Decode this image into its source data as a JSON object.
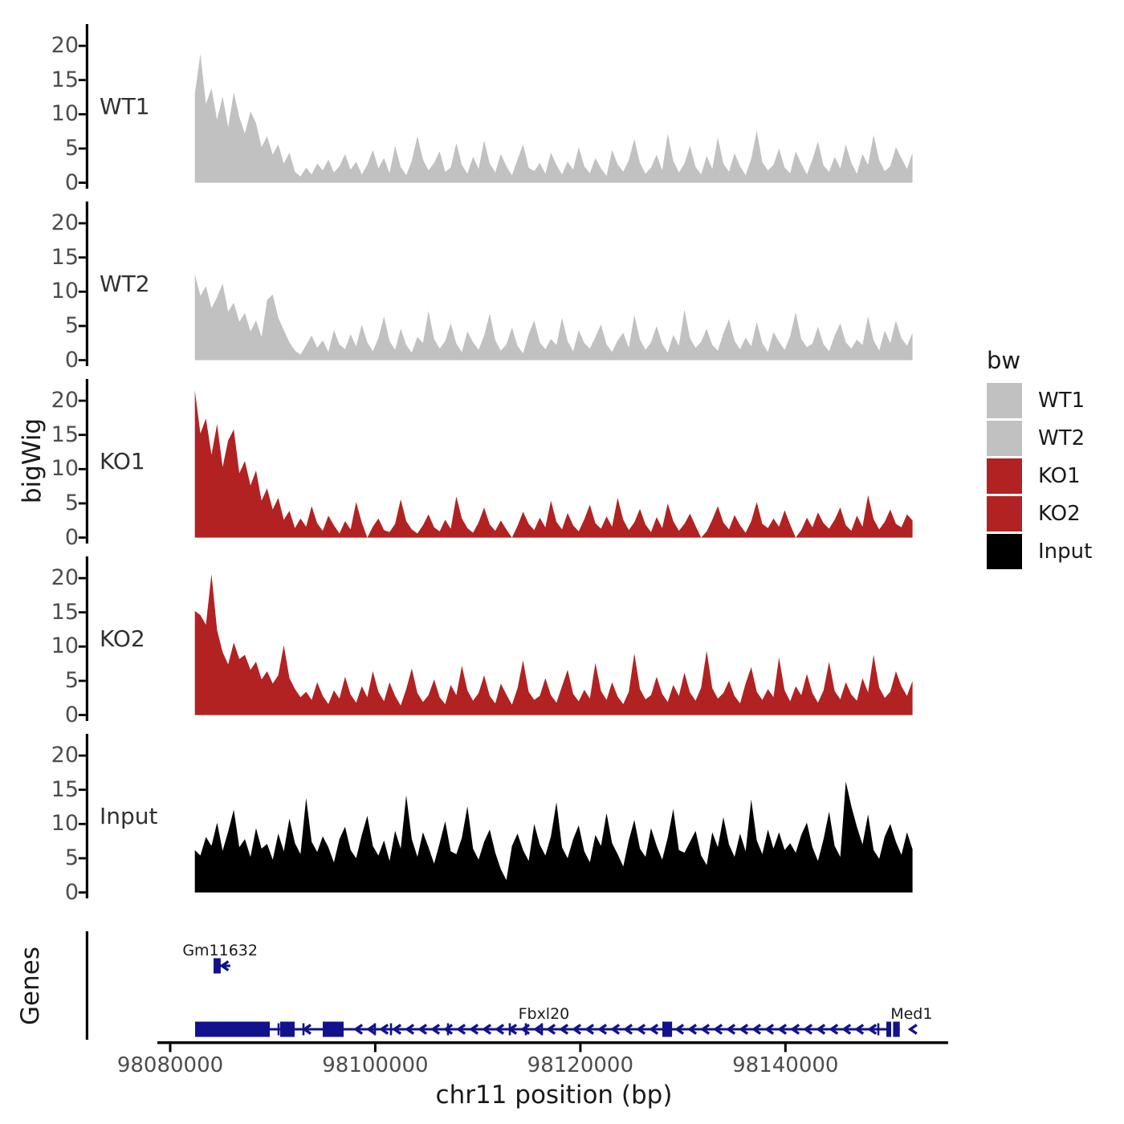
{
  "figure": {
    "y_axis_title": "bigWig",
    "genes_axis_title": "Genes",
    "x_axis_title": "chr11 position (bp)"
  },
  "colors": {
    "wt_gray": "#C1C1C1",
    "ko_red": "#B22222",
    "input_black": "#000000",
    "gene_navy": "#12128C",
    "axis_black": "#000000",
    "tick_text_gray": "#4d4d4d"
  },
  "y_axis": {
    "ticks": [
      "0",
      "5",
      "10",
      "15",
      "20"
    ],
    "tick_values": [
      0,
      5,
      10,
      15,
      20
    ],
    "range": [
      0,
      23
    ]
  },
  "x_axis": {
    "ticks": [
      {
        "label": "98080000",
        "bp": 98080000
      },
      {
        "label": "98100000",
        "bp": 98100000
      },
      {
        "label": "98120000",
        "bp": 98120000
      },
      {
        "label": "98140000",
        "bp": 98140000
      }
    ]
  },
  "legend": {
    "title": "bw",
    "entries": [
      {
        "label": "WT1",
        "color": "#C1C1C1"
      },
      {
        "label": "WT2",
        "color": "#C1C1C1"
      },
      {
        "label": "KO1",
        "color": "#B22222"
      },
      {
        "label": "KO2",
        "color": "#B22222"
      },
      {
        "label": "Input",
        "color": "#000000"
      }
    ]
  },
  "chart_data": {
    "type": "area",
    "title": "",
    "xlabel": "chr11 position (bp)",
    "ylabel": "bigWig",
    "grid": false,
    "legend_position": "right",
    "x_start_bp": 98082400,
    "x_end_bp": 98152400,
    "ylim": [
      0,
      23
    ],
    "series": [
      {
        "name": "WT1",
        "color": "#C1C1C1",
        "values": [
          13.0,
          18.8,
          11.5,
          13.8,
          9.2,
          12.6,
          8.1,
          13.2,
          9.6,
          7.2,
          10.4,
          8.7,
          5.2,
          6.8,
          4.1,
          5.6,
          2.8,
          4.4,
          1.6,
          0.9,
          2.2,
          1.2,
          2.8,
          1.8,
          3.4,
          1.5,
          2.4,
          4.2,
          1.9,
          3.1,
          1.2,
          2.6,
          4.8,
          2.1,
          3.6,
          1.4,
          5.4,
          2.3,
          1.1,
          3.2,
          6.8,
          3.4,
          1.8,
          2.9,
          4.6,
          1.6,
          2.2,
          5.8,
          2.6,
          1.3,
          3.8,
          2.0,
          6.2,
          2.8,
          1.5,
          4.2,
          2.4,
          1.1,
          3.4,
          5.6,
          2.2,
          1.7,
          2.9,
          1.3,
          4.4,
          2.6,
          1.2,
          3.1,
          1.9,
          5.2,
          2.4,
          1.4,
          3.6,
          2.1,
          1.0,
          4.8,
          2.7,
          1.6,
          3.3,
          6.4,
          2.9,
          1.3,
          2.2,
          4.1,
          1.8,
          7.2,
          3.2,
          1.5,
          2.8,
          5.4,
          2.3,
          1.2,
          3.9,
          2.0,
          6.6,
          2.8,
          1.6,
          4.3,
          2.4,
          1.1,
          3.5,
          7.6,
          3.0,
          1.8,
          2.6,
          5.0,
          2.2,
          1.4,
          4.6,
          2.8,
          1.2,
          3.4,
          6.0,
          2.5,
          1.6,
          3.8,
          2.1,
          5.6,
          2.9,
          1.3,
          4.2,
          2.6,
          7.0,
          3.3,
          1.7,
          2.4,
          5.2,
          3.6,
          2.0,
          4.4
        ]
      },
      {
        "name": "WT2",
        "color": "#C1C1C1",
        "values": [
          12.6,
          9.4,
          10.8,
          7.6,
          9.2,
          11.2,
          7.1,
          8.4,
          5.6,
          6.9,
          4.2,
          5.8,
          3.4,
          8.8,
          9.6,
          6.2,
          4.4,
          2.6,
          1.4,
          0.8,
          2.2,
          3.6,
          1.8,
          2.9,
          1.2,
          4.4,
          2.3,
          1.6,
          3.8,
          2.0,
          5.2,
          2.6,
          1.3,
          3.2,
          6.4,
          2.8,
          1.5,
          4.6,
          2.2,
          1.1,
          3.4,
          2.5,
          7.2,
          3.1,
          1.7,
          2.8,
          5.4,
          2.4,
          1.2,
          4.2,
          2.6,
          1.5,
          3.6,
          6.8,
          2.9,
          1.4,
          2.3,
          4.8,
          2.1,
          1.0,
          3.8,
          5.8,
          2.6,
          1.6,
          3.1,
          2.2,
          6.2,
          2.8,
          1.3,
          4.4,
          2.5,
          1.7,
          3.4,
          5.2,
          2.3,
          1.2,
          2.9,
          4.0,
          1.8,
          6.6,
          3.0,
          1.5,
          2.6,
          5.0,
          2.4,
          1.1,
          3.7,
          2.1,
          7.4,
          3.2,
          1.8,
          2.7,
          4.6,
          2.2,
          1.4,
          3.9,
          6.0,
          2.8,
          1.6,
          3.3,
          2.0,
          5.6,
          2.5,
          1.2,
          4.1,
          2.7,
          1.5,
          3.5,
          7.0,
          3.1,
          1.9,
          2.4,
          4.9,
          2.3,
          1.3,
          3.6,
          5.4,
          2.6,
          1.7,
          3.0,
          2.2,
          6.4,
          2.9,
          1.4,
          4.3,
          2.5,
          5.8,
          3.2,
          2.1,
          4.0
        ]
      },
      {
        "name": "KO1",
        "color": "#B22222",
        "values": [
          21.5,
          15.2,
          17.4,
          12.1,
          16.6,
          10.3,
          14.2,
          15.8,
          9.4,
          11.2,
          7.6,
          9.8,
          5.4,
          7.2,
          4.1,
          5.8,
          2.6,
          3.9,
          1.4,
          2.8,
          1.6,
          4.6,
          2.1,
          1.0,
          3.2,
          1.8,
          0.6,
          2.4,
          1.2,
          5.2,
          2.2,
          0.0,
          1.6,
          2.8,
          1.1,
          0.8,
          2.0,
          5.6,
          2.4,
          1.2,
          0.6,
          1.8,
          3.4,
          1.5,
          0.9,
          2.6,
          1.3,
          6.0,
          2.8,
          1.4,
          0.7,
          2.2,
          4.4,
          1.9,
          1.0,
          2.5,
          1.2,
          0.0,
          1.7,
          3.8,
          2.0,
          1.1,
          2.9,
          1.5,
          5.4,
          2.3,
          1.2,
          3.6,
          1.8,
          0.9,
          2.7,
          4.8,
          2.1,
          1.3,
          3.1,
          1.6,
          5.8,
          2.6,
          1.1,
          2.2,
          4.2,
          1.9,
          0.8,
          3.0,
          1.4,
          5.0,
          2.4,
          1.0,
          2.0,
          3.5,
          1.7,
          0.0,
          0.9,
          2.6,
          4.6,
          2.2,
          1.2,
          3.3,
          1.8,
          0.7,
          2.4,
          5.2,
          2.0,
          1.4,
          2.8,
          1.6,
          4.0,
          1.9,
          0.0,
          1.1,
          2.9,
          1.5,
          3.7,
          2.1,
          1.3,
          2.6,
          4.4,
          1.8,
          1.0,
          3.2,
          1.6,
          6.2,
          2.7,
          1.2,
          2.3,
          4.1,
          2.0,
          1.5,
          3.4,
          2.5
        ]
      },
      {
        "name": "KO2",
        "color": "#B22222",
        "values": [
          15.2,
          14.6,
          13.2,
          20.6,
          12.4,
          9.2,
          7.4,
          10.6,
          8.2,
          8.8,
          6.6,
          7.8,
          5.2,
          6.4,
          4.6,
          5.8,
          10.2,
          5.4,
          3.8,
          2.6,
          3.4,
          2.2,
          4.8,
          2.8,
          1.6,
          3.6,
          2.4,
          5.6,
          3.0,
          1.8,
          4.2,
          2.6,
          6.4,
          3.4,
          2.0,
          4.8,
          2.8,
          1.4,
          3.8,
          6.8,
          3.2,
          1.9,
          2.9,
          5.2,
          2.6,
          1.6,
          4.4,
          2.9,
          7.2,
          3.6,
          2.1,
          3.2,
          5.8,
          2.8,
          1.7,
          4.6,
          3.0,
          1.5,
          3.9,
          8.0,
          3.4,
          2.2,
          2.8,
          5.4,
          2.9,
          1.8,
          4.2,
          6.6,
          3.1,
          2.0,
          3.7,
          2.4,
          7.6,
          3.5,
          2.2,
          4.8,
          2.7,
          1.6,
          3.4,
          9.0,
          3.8,
          2.3,
          2.9,
          5.6,
          3.1,
          1.9,
          4.4,
          2.8,
          6.2,
          3.3,
          2.1,
          4.0,
          9.4,
          3.9,
          2.4,
          3.2,
          5.0,
          2.8,
          1.7,
          4.6,
          7.0,
          3.4,
          2.2,
          3.8,
          2.6,
          8.4,
          3.6,
          2.0,
          4.2,
          2.9,
          6.0,
          3.2,
          1.8,
          3.6,
          7.8,
          3.5,
          2.3,
          4.8,
          3.0,
          2.1,
          5.4,
          3.3,
          8.8,
          4.0,
          2.5,
          3.4,
          6.4,
          4.2,
          2.8,
          5.0
        ]
      },
      {
        "name": "Input",
        "color": "#000000",
        "values": [
          6.2,
          5.4,
          8.1,
          6.8,
          10.2,
          6.1,
          8.9,
          12.1,
          6.6,
          7.8,
          5.2,
          9.4,
          6.4,
          7.1,
          4.8,
          8.6,
          6.0,
          10.8,
          7.2,
          5.6,
          13.8,
          7.4,
          5.9,
          8.2,
          6.6,
          4.4,
          7.8,
          9.6,
          6.2,
          5.0,
          8.4,
          11.2,
          6.8,
          5.4,
          7.6,
          4.6,
          9.0,
          6.4,
          14.2,
          7.8,
          5.2,
          8.8,
          6.6,
          4.2,
          7.2,
          10.4,
          6.0,
          5.6,
          8.0,
          12.6,
          6.4,
          4.8,
          7.4,
          9.2,
          5.8,
          3.4,
          1.8,
          6.8,
          8.6,
          6.2,
          4.6,
          10.0,
          7.0,
          5.4,
          8.2,
          13.2,
          6.6,
          5.0,
          7.8,
          9.8,
          6.0,
          4.4,
          8.4,
          6.8,
          11.6,
          7.2,
          5.6,
          3.8,
          7.6,
          10.6,
          6.4,
          5.2,
          9.4,
          6.8,
          4.8,
          8.0,
          12.2,
          6.2,
          5.8,
          7.4,
          9.0,
          5.4,
          4.0,
          8.8,
          6.6,
          11.0,
          7.0,
          5.2,
          8.6,
          6.0,
          13.6,
          7.6,
          5.6,
          9.2,
          6.4,
          8.8,
          6.2,
          7.2,
          5.8,
          8.4,
          10.2,
          6.6,
          4.6,
          7.8,
          11.8,
          6.8,
          5.2,
          16.2,
          12.6,
          9.6,
          7.0,
          11.4,
          6.2,
          4.9,
          8.2,
          10.0,
          7.4,
          5.5,
          8.8,
          6.3
        ]
      }
    ]
  },
  "genes": {
    "items": [
      {
        "name": "Gm11632",
        "strand": "-",
        "row": "top",
        "label_bp": 98081200,
        "thick_exons": [
          [
            98084230,
            98084930
          ]
        ],
        "line": [
          98084230,
          98085870
        ],
        "tick_exons": [],
        "chevrons": [
          98085320
        ]
      },
      {
        "name": "Fbxl20",
        "strand": "-",
        "row": "bottom",
        "label_bp": 98113950,
        "thick_exons": [
          [
            98082430,
            98089710
          ],
          [
            98090727,
            98092137
          ],
          [
            98094877,
            98096913
          ],
          [
            98128000,
            98128950
          ],
          [
            98149846,
            98150316
          ]
        ],
        "line": [
          98082430,
          98150316
        ],
        "tick_exons": [
          98090570,
          98092998,
          98099967,
          98101533,
          98107090,
          98113120,
          98114686,
          98116252,
          98149063
        ],
        "chevron_step_bp": 1253
      },
      {
        "name": "Med1",
        "strand": "-",
        "row": "bottom",
        "label_bp": 98150250,
        "thick_exons": [
          [
            98150500,
            98151150
          ]
        ],
        "line": [
          98150500,
          98151150
        ],
        "tick_exons": [],
        "chevrons": [
          98152450
        ]
      }
    ]
  }
}
